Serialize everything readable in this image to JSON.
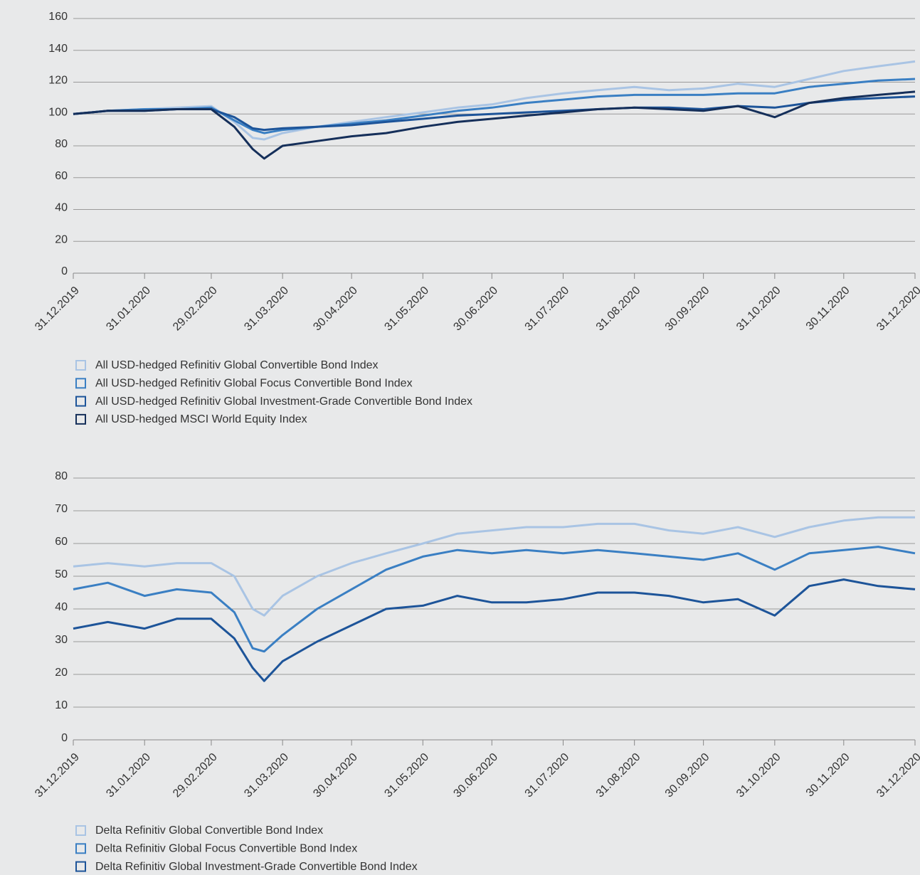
{
  "chart_data": [
    {
      "type": "line",
      "x": [
        "31.12.2019",
        "15.01.2020",
        "31.01.2020",
        "14.02.2020",
        "29.02.2020",
        "10.03.2020",
        "18.03.2020",
        "23.03.2020",
        "31.03.2020",
        "15.04.2020",
        "30.04.2020",
        "15.05.2020",
        "31.05.2020",
        "15.06.2020",
        "30.06.2020",
        "15.07.2020",
        "31.07.2020",
        "15.08.2020",
        "31.08.2020",
        "15.09.2020",
        "30.09.2020",
        "15.10.2020",
        "31.10.2020",
        "15.11.2020",
        "30.11.2020",
        "15.12.2020",
        "31.12.2020"
      ],
      "series": [
        {
          "name": "All USD-hedged Refinitiv Global Convertible Bond Index",
          "color": "#a9c4e4",
          "values": [
            100,
            102,
            103,
            104,
            105,
            95,
            85,
            84,
            88,
            92,
            95,
            98,
            101,
            104,
            106,
            110,
            113,
            115,
            117,
            115,
            116,
            119,
            117,
            122,
            127,
            130,
            133
          ]
        },
        {
          "name": "All USD-hedged Refinitiv Global Focus Convertible Bond Index",
          "color": "#3a7fc3",
          "values": [
            100,
            102,
            103,
            103,
            104,
            96,
            90,
            88,
            90,
            92,
            94,
            96,
            99,
            102,
            104,
            107,
            109,
            111,
            112,
            112,
            112,
            113,
            113,
            117,
            119,
            121,
            122
          ]
        },
        {
          "name": "All USD-hedged Refinitiv Global Investment-Grade Convertible Bond Index",
          "color": "#1d5499",
          "values": [
            100,
            102,
            102,
            103,
            103,
            98,
            91,
            90,
            91,
            92,
            93,
            95,
            97,
            99,
            100,
            101,
            102,
            103,
            104,
            104,
            103,
            105,
            104,
            107,
            109,
            110,
            111
          ]
        },
        {
          "name": "All USD-hedged MSCI World Equity Index",
          "color": "#152f5a",
          "values": [
            100,
            102,
            102,
            103,
            103,
            92,
            78,
            72,
            80,
            83,
            86,
            88,
            92,
            95,
            97,
            99,
            101,
            103,
            104,
            103,
            102,
            105,
            98,
            107,
            110,
            112,
            114
          ]
        }
      ],
      "xlim": [
        "31.12.2019",
        "31.12.2020"
      ],
      "xticks": [
        "31.12.2019",
        "31.01.2020",
        "29.02.2020",
        "31.03.2020",
        "30.04.2020",
        "31.05.2020",
        "30.06.2020",
        "31.07.2020",
        "31.08.2020",
        "30.09.2020",
        "31.10.2020",
        "30.11.2020",
        "31.12.2020"
      ],
      "ylim": [
        0,
        160
      ],
      "yticks": [
        0,
        20,
        40,
        60,
        80,
        100,
        120,
        140,
        160
      ],
      "grid": true
    },
    {
      "type": "line",
      "x": [
        "31.12.2019",
        "15.01.2020",
        "31.01.2020",
        "14.02.2020",
        "29.02.2020",
        "10.03.2020",
        "18.03.2020",
        "23.03.2020",
        "31.03.2020",
        "15.04.2020",
        "30.04.2020",
        "15.05.2020",
        "31.05.2020",
        "15.06.2020",
        "30.06.2020",
        "15.07.2020",
        "31.07.2020",
        "15.08.2020",
        "31.08.2020",
        "15.09.2020",
        "30.09.2020",
        "15.10.2020",
        "31.10.2020",
        "15.11.2020",
        "30.11.2020",
        "15.12.2020",
        "31.12.2020"
      ],
      "series": [
        {
          "name": "Delta Refinitiv Global Convertible Bond Index",
          "color": "#a9c4e4",
          "values": [
            53,
            54,
            53,
            54,
            54,
            50,
            40,
            38,
            44,
            50,
            54,
            57,
            60,
            63,
            64,
            65,
            65,
            66,
            66,
            64,
            63,
            65,
            62,
            65,
            67,
            68,
            68
          ]
        },
        {
          "name": "Delta Refinitiv Global Focus Convertible Bond Index",
          "color": "#3a7fc3",
          "values": [
            46,
            48,
            44,
            46,
            45,
            39,
            28,
            27,
            32,
            40,
            46,
            52,
            56,
            58,
            57,
            58,
            57,
            58,
            57,
            56,
            55,
            57,
            52,
            57,
            58,
            59,
            57
          ]
        },
        {
          "name": "Delta Refinitiv Global Investment-Grade Convertible Bond Index",
          "color": "#1d5499",
          "values": [
            34,
            36,
            34,
            37,
            37,
            31,
            22,
            18,
            24,
            30,
            35,
            40,
            41,
            44,
            42,
            42,
            43,
            45,
            45,
            44,
            42,
            43,
            38,
            47,
            49,
            47,
            46
          ]
        }
      ],
      "xlim": [
        "31.12.2019",
        "31.12.2020"
      ],
      "xticks": [
        "31.12.2019",
        "31.01.2020",
        "29.02.2020",
        "31.03.2020",
        "30.04.2020",
        "31.05.2020",
        "30.06.2020",
        "31.07.2020",
        "31.08.2020",
        "30.09.2020",
        "31.10.2020",
        "30.11.2020",
        "31.12.2020"
      ],
      "ylim": [
        0,
        80
      ],
      "yticks": [
        0,
        10,
        20,
        30,
        40,
        50,
        60,
        70,
        80
      ],
      "grid": true
    }
  ]
}
